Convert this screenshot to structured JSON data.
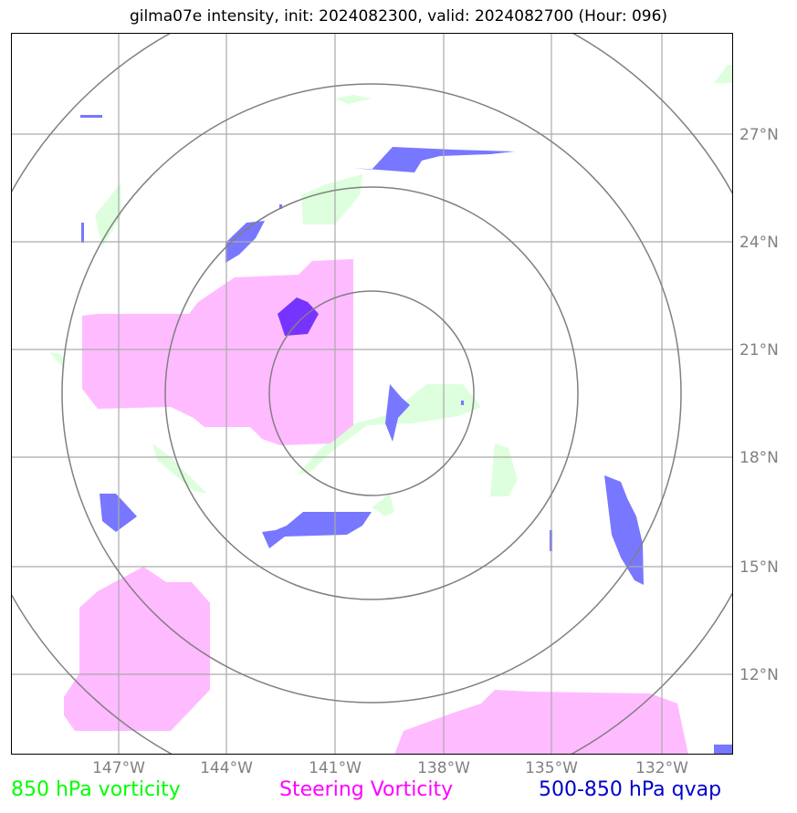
{
  "title": "gilma07e intensity, init: 2024082300, valid: 2024082700 (Hour: 096)",
  "lon_labels": [
    "147°W",
    "144°W",
    "141°W",
    "138°W",
    "135°W",
    "132°W"
  ],
  "lat_labels": [
    "27°N",
    "24°N",
    "21°N",
    "18°N",
    "15°N",
    "12°N"
  ],
  "legend": {
    "vorticity_850": {
      "label": "850 hPa vorticity",
      "color": "#00ff00"
    },
    "steering": {
      "label": "Steering Vorticity",
      "color": "#ff00ff"
    },
    "qvap": {
      "label": "500-850 hPa qvap",
      "color": "#0000cc"
    }
  },
  "colors": {
    "grid": "#aaaaaa",
    "range_rings": "#808080",
    "vorticity_fill": "#ddffdd",
    "steering_fill": "#ffbbff",
    "qvap_fill": "#7777ff",
    "qvap_core": "#7733ff"
  }
}
